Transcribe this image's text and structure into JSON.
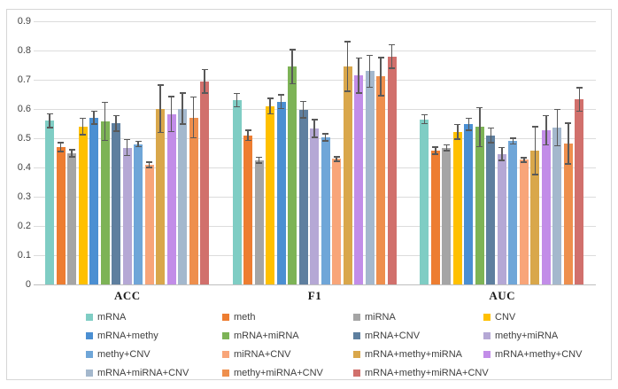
{
  "figure": {
    "background": "#ffffff",
    "border_color": "#d6d6d6",
    "gridline_color": "#dcdcdc",
    "axis_line_color": "#bfbfbf",
    "error_bar_color": "#595959",
    "text_color": "#404040"
  },
  "chart_data": {
    "type": "bar",
    "title": "",
    "xlabel": "",
    "ylabel": "",
    "categories": [
      "ACC",
      "F1",
      "AUC"
    ],
    "ylim": [
      0,
      0.9
    ],
    "yticks": [
      0,
      0.1,
      0.2,
      0.3,
      0.4,
      0.5,
      0.6,
      0.7,
      0.8,
      0.9
    ],
    "ytick_labels": [
      "0",
      "0.1",
      "0.2",
      "0.3",
      "0.4",
      "0.5",
      "0.6",
      "0.7",
      "0.8",
      "0.9"
    ],
    "grid": true,
    "legend_position": "bottom",
    "error_bars": true,
    "series": [
      {
        "name": "mRNA",
        "color": "#7fcdc4",
        "values": [
          0.56,
          0.63,
          0.565
        ],
        "errors": [
          0.024,
          0.023,
          0.015
        ]
      },
      {
        "name": "meth",
        "color": "#ed7d31",
        "values": [
          0.47,
          0.51,
          0.458
        ],
        "errors": [
          0.015,
          0.017,
          0.012
        ]
      },
      {
        "name": "miRNA",
        "color": "#a5a5a5",
        "values": [
          0.448,
          0.425,
          0.468
        ],
        "errors": [
          0.012,
          0.01,
          0.01
        ]
      },
      {
        "name": "CNV",
        "color": "#ffc000",
        "values": [
          0.54,
          0.61,
          0.522
        ],
        "errors": [
          0.028,
          0.027,
          0.025
        ]
      },
      {
        "name": "mRNA+methy",
        "color": "#4b8fd2",
        "values": [
          0.57,
          0.625,
          0.548
        ],
        "errors": [
          0.022,
          0.023,
          0.02
        ]
      },
      {
        "name": "mRNA+miRNA",
        "color": "#7db356",
        "values": [
          0.558,
          0.745,
          0.538
        ],
        "errors": [
          0.065,
          0.058,
          0.067
        ]
      },
      {
        "name": "mRNA+CNV",
        "color": "#5e7f9f",
        "values": [
          0.551,
          0.598,
          0.51
        ],
        "errors": [
          0.026,
          0.028,
          0.025
        ]
      },
      {
        "name": "methy+miRNA",
        "color": "#b5a8d5",
        "values": [
          0.468,
          0.533,
          0.446
        ],
        "errors": [
          0.027,
          0.03,
          0.022
        ]
      },
      {
        "name": "methy+CNV",
        "color": "#6fa6d8",
        "values": [
          0.48,
          0.503,
          0.49
        ],
        "errors": [
          0.009,
          0.012,
          0.01
        ]
      },
      {
        "name": "miRNA+CNV",
        "color": "#f8a579",
        "values": [
          0.409,
          0.429,
          0.426
        ],
        "errors": [
          0.009,
          0.008,
          0.008
        ]
      },
      {
        "name": "mRNA+methy+miRNA",
        "color": "#d9a74b",
        "values": [
          0.601,
          0.745,
          0.458
        ],
        "errors": [
          0.081,
          0.085,
          0.082
        ]
      },
      {
        "name": "mRNA+methy+CNV",
        "color": "#c28de8",
        "values": [
          0.582,
          0.715,
          0.527
        ],
        "errors": [
          0.06,
          0.06,
          0.05
        ]
      },
      {
        "name": "mRNA+miRNA+CNV",
        "color": "#a4b8cd",
        "values": [
          0.601,
          0.729,
          0.537
        ],
        "errors": [
          0.053,
          0.055,
          0.062
        ]
      },
      {
        "name": "methy+miRNA+CNV",
        "color": "#ee8f4d",
        "values": [
          0.571,
          0.711,
          0.482
        ],
        "errors": [
          0.07,
          0.065,
          0.07
        ]
      },
      {
        "name": "mRNA+methy+miRNA+CNV",
        "color": "#d1706c",
        "values": [
          0.695,
          0.78,
          0.633
        ],
        "errors": [
          0.04,
          0.04,
          0.04
        ]
      }
    ]
  }
}
